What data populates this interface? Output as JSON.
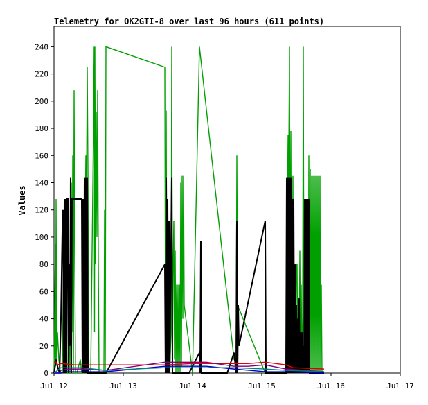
{
  "chart_data": {
    "type": "line",
    "title": "Telemetry for OK2GTI-8 over last 96 hours (611 points)",
    "xlabel": "",
    "ylabel": "Values",
    "x_tick_labels": [
      "Jul 12",
      "Jul 13",
      "Jul 14",
      "Jul 15",
      "Jul 16",
      "Jul 17"
    ],
    "xlim": [
      0,
      5
    ],
    "ylim": [
      0,
      255
    ],
    "y_ticks": [
      0,
      20,
      40,
      60,
      80,
      100,
      120,
      140,
      160,
      180,
      200,
      220,
      240
    ],
    "grid": false,
    "series_colors": {
      "green": "#00a000",
      "black": "#000000",
      "red": "#e00000",
      "blue": "#0000c0",
      "purple": "#800080",
      "teal": "#008080"
    },
    "series": [
      {
        "color_key": "green",
        "points": [
          [
            0.0,
            0
          ],
          [
            0.02,
            95
          ],
          [
            0.025,
            5
          ],
          [
            0.03,
            128
          ],
          [
            0.04,
            10
          ],
          [
            0.05,
            30
          ],
          [
            0.07,
            10
          ],
          [
            0.09,
            0
          ],
          [
            0.12,
            0
          ],
          [
            0.14,
            90
          ],
          [
            0.15,
            0
          ],
          [
            0.16,
            60
          ],
          [
            0.18,
            0
          ],
          [
            0.2,
            0
          ],
          [
            0.22,
            50
          ],
          [
            0.23,
            0
          ],
          [
            0.25,
            140
          ],
          [
            0.26,
            30
          ],
          [
            0.27,
            160
          ],
          [
            0.28,
            0
          ],
          [
            0.29,
            208
          ],
          [
            0.3,
            80
          ],
          [
            0.31,
            0
          ],
          [
            0.33,
            0
          ],
          [
            0.38,
            10
          ],
          [
            0.4,
            0
          ],
          [
            0.44,
            0
          ],
          [
            0.45,
            120
          ],
          [
            0.46,
            160
          ],
          [
            0.47,
            140
          ],
          [
            0.48,
            225
          ],
          [
            0.49,
            150
          ],
          [
            0.5,
            0
          ],
          [
            0.52,
            0
          ],
          [
            0.53,
            0
          ],
          [
            0.57,
            180
          ],
          [
            0.58,
            240
          ],
          [
            0.585,
            30
          ],
          [
            0.59,
            240
          ],
          [
            0.6,
            80
          ],
          [
            0.61,
            192
          ],
          [
            0.62,
            100
          ],
          [
            0.63,
            208
          ],
          [
            0.64,
            80
          ],
          [
            0.65,
            0
          ],
          [
            0.68,
            0
          ],
          [
            0.7,
            0
          ],
          [
            0.72,
            0
          ],
          [
            0.73,
            120
          ],
          [
            0.74,
            0
          ],
          [
            0.75,
            240
          ],
          [
            1.6,
            225
          ],
          [
            1.61,
            0
          ],
          [
            1.62,
            193
          ],
          [
            1.63,
            40
          ],
          [
            1.64,
            50
          ],
          [
            1.65,
            0
          ],
          [
            1.66,
            112
          ],
          [
            1.67,
            0
          ],
          [
            1.69,
            30
          ],
          [
            1.7,
            240
          ],
          [
            1.71,
            0
          ],
          [
            1.72,
            80
          ],
          [
            1.73,
            112
          ],
          [
            1.74,
            10
          ],
          [
            1.75,
            90
          ],
          [
            1.76,
            0
          ],
          [
            1.77,
            65
          ],
          [
            1.78,
            0
          ],
          [
            1.79,
            65
          ],
          [
            1.8,
            0
          ],
          [
            1.81,
            65
          ],
          [
            1.82,
            0
          ],
          [
            1.83,
            140
          ],
          [
            1.84,
            5
          ],
          [
            1.85,
            145
          ],
          [
            1.86,
            40
          ],
          [
            1.87,
            145
          ],
          [
            1.88,
            50
          ],
          [
            2.0,
            0
          ],
          [
            2.1,
            240
          ],
          [
            2.6,
            10
          ],
          [
            2.63,
            10
          ],
          [
            2.64,
            160
          ],
          [
            2.65,
            50
          ],
          [
            3.05,
            0
          ],
          [
            3.1,
            0
          ],
          [
            3.2,
            0
          ],
          [
            3.35,
            0
          ],
          [
            3.36,
            140
          ],
          [
            3.37,
            120
          ],
          [
            3.38,
            175
          ],
          [
            3.385,
            120
          ],
          [
            3.39,
            160
          ],
          [
            3.4,
            240
          ],
          [
            3.41,
            30
          ],
          [
            3.42,
            178
          ],
          [
            3.43,
            20
          ],
          [
            3.44,
            145
          ],
          [
            3.45,
            0
          ],
          [
            3.46,
            145
          ],
          [
            3.47,
            0
          ],
          [
            3.48,
            80
          ],
          [
            3.49,
            20
          ],
          [
            3.5,
            80
          ],
          [
            3.51,
            80
          ],
          [
            3.52,
            0
          ],
          [
            3.53,
            50
          ],
          [
            3.54,
            20
          ],
          [
            3.55,
            90
          ],
          [
            3.56,
            0
          ],
          [
            3.57,
            65
          ],
          [
            3.58,
            0
          ],
          [
            3.59,
            40
          ],
          [
            3.6,
            240
          ],
          [
            3.61,
            10
          ],
          [
            3.62,
            90
          ],
          [
            3.63,
            0
          ],
          [
            3.64,
            128
          ],
          [
            3.65,
            0
          ],
          [
            3.66,
            80
          ],
          [
            3.67,
            0
          ],
          [
            3.68,
            160
          ],
          [
            3.69,
            0
          ],
          [
            3.7,
            150
          ],
          [
            3.71,
            0
          ],
          [
            3.72,
            145
          ],
          [
            3.73,
            0
          ],
          [
            3.74,
            145
          ],
          [
            3.75,
            0
          ],
          [
            3.76,
            145
          ],
          [
            3.77,
            0
          ],
          [
            3.78,
            145
          ],
          [
            3.79,
            0
          ],
          [
            3.8,
            145
          ],
          [
            3.81,
            0
          ],
          [
            3.82,
            145
          ],
          [
            3.83,
            0
          ],
          [
            3.84,
            145
          ],
          [
            3.85,
            0
          ],
          [
            3.86,
            65
          ],
          [
            3.87,
            0
          ],
          [
            3.9,
            0
          ]
        ]
      },
      {
        "color_key": "black",
        "points": [
          [
            0.0,
            0
          ],
          [
            0.03,
            10
          ],
          [
            0.05,
            5
          ],
          [
            0.08,
            0
          ],
          [
            0.1,
            40
          ],
          [
            0.12,
            105
          ],
          [
            0.13,
            120
          ],
          [
            0.14,
            0
          ],
          [
            0.15,
            128
          ],
          [
            0.16,
            0
          ],
          [
            0.17,
            128
          ],
          [
            0.18,
            0
          ],
          [
            0.19,
            128
          ],
          [
            0.2,
            128
          ],
          [
            0.21,
            0
          ],
          [
            0.22,
            80
          ],
          [
            0.23,
            20
          ],
          [
            0.24,
            144
          ],
          [
            0.25,
            0
          ],
          [
            0.26,
            128
          ],
          [
            0.27,
            128
          ],
          [
            0.4,
            128
          ],
          [
            0.41,
            0
          ],
          [
            0.42,
            128
          ],
          [
            0.43,
            0
          ],
          [
            0.44,
            144
          ],
          [
            0.45,
            0
          ],
          [
            0.46,
            144
          ],
          [
            0.47,
            0
          ],
          [
            0.48,
            144
          ],
          [
            0.49,
            0
          ],
          [
            0.75,
            0
          ],
          [
            1.6,
            80
          ],
          [
            1.61,
            0
          ],
          [
            1.62,
            144
          ],
          [
            1.63,
            0
          ],
          [
            1.64,
            128
          ],
          [
            1.65,
            0
          ],
          [
            1.66,
            112
          ],
          [
            1.67,
            0
          ],
          [
            1.7,
            144
          ],
          [
            1.71,
            0
          ],
          [
            1.72,
            0
          ],
          [
            1.85,
            0
          ],
          [
            1.9,
            0
          ],
          [
            1.95,
            0
          ],
          [
            2.0,
            5
          ],
          [
            2.1,
            15
          ],
          [
            2.11,
            0
          ],
          [
            2.12,
            97
          ],
          [
            2.13,
            0
          ],
          [
            2.2,
            0
          ],
          [
            2.5,
            0
          ],
          [
            2.6,
            15
          ],
          [
            2.63,
            0
          ],
          [
            2.64,
            112
          ],
          [
            2.65,
            0
          ],
          [
            2.66,
            50
          ],
          [
            2.67,
            20
          ],
          [
            3.05,
            112
          ],
          [
            3.06,
            0
          ],
          [
            3.3,
            0
          ],
          [
            3.35,
            0
          ],
          [
            3.36,
            144
          ],
          [
            3.37,
            0
          ],
          [
            3.38,
            144
          ],
          [
            3.39,
            0
          ],
          [
            3.4,
            144
          ],
          [
            3.41,
            0
          ],
          [
            3.42,
            144
          ],
          [
            3.43,
            0
          ],
          [
            3.44,
            128
          ],
          [
            3.45,
            0
          ],
          [
            3.46,
            128
          ],
          [
            3.47,
            0
          ],
          [
            3.48,
            80
          ],
          [
            3.49,
            0
          ],
          [
            3.5,
            50
          ],
          [
            3.51,
            0
          ],
          [
            3.52,
            40
          ],
          [
            3.53,
            0
          ],
          [
            3.54,
            55
          ],
          [
            3.55,
            0
          ],
          [
            3.56,
            30
          ],
          [
            3.57,
            0
          ],
          [
            3.58,
            30
          ],
          [
            3.59,
            0
          ],
          [
            3.6,
            20
          ],
          [
            3.61,
            0
          ],
          [
            3.62,
            128
          ],
          [
            3.63,
            0
          ],
          [
            3.64,
            128
          ],
          [
            3.65,
            0
          ],
          [
            3.66,
            128
          ],
          [
            3.67,
            0
          ],
          [
            3.68,
            128
          ],
          [
            3.69,
            0
          ],
          [
            3.9,
            0
          ]
        ]
      },
      {
        "color_key": "red",
        "points": [
          [
            0.0,
            8
          ],
          [
            0.03,
            8
          ],
          [
            0.05,
            6
          ],
          [
            0.1,
            7
          ],
          [
            0.3,
            6
          ],
          [
            1.6,
            6
          ],
          [
            2.0,
            7
          ],
          [
            2.2,
            7
          ],
          [
            2.6,
            7
          ],
          [
            2.8,
            7
          ],
          [
            3.05,
            8
          ],
          [
            3.35,
            6
          ],
          [
            3.45,
            4
          ],
          [
            3.9,
            3
          ]
        ]
      },
      {
        "color_key": "purple",
        "points": [
          [
            0.0,
            0
          ],
          [
            0.05,
            0
          ],
          [
            0.08,
            0
          ],
          [
            0.1,
            2
          ],
          [
            0.2,
            3
          ],
          [
            0.4,
            3
          ],
          [
            0.75,
            2
          ],
          [
            1.6,
            8
          ],
          [
            1.65,
            8
          ],
          [
            2.0,
            8
          ],
          [
            2.2,
            8
          ],
          [
            2.6,
            5
          ],
          [
            2.8,
            5
          ],
          [
            3.05,
            6
          ],
          [
            3.35,
            3
          ],
          [
            3.9,
            1
          ]
        ]
      },
      {
        "color_key": "blue",
        "points": [
          [
            0.0,
            0
          ],
          [
            0.1,
            0
          ],
          [
            0.15,
            1
          ],
          [
            0.4,
            1
          ],
          [
            0.75,
            1
          ],
          [
            1.6,
            5
          ],
          [
            2.0,
            5
          ],
          [
            2.2,
            5
          ],
          [
            2.6,
            3
          ],
          [
            3.05,
            1
          ],
          [
            3.35,
            1
          ],
          [
            3.9,
            0
          ]
        ]
      },
      {
        "color_key": "teal",
        "points": [
          [
            0.0,
            0
          ],
          [
            0.1,
            4
          ],
          [
            0.2,
            4
          ],
          [
            0.4,
            4
          ],
          [
            0.75,
            2
          ],
          [
            1.6,
            4
          ],
          [
            2.0,
            4
          ],
          [
            2.2,
            4
          ],
          [
            2.6,
            4
          ],
          [
            3.05,
            3
          ],
          [
            3.35,
            2
          ],
          [
            3.9,
            1
          ]
        ]
      }
    ]
  }
}
